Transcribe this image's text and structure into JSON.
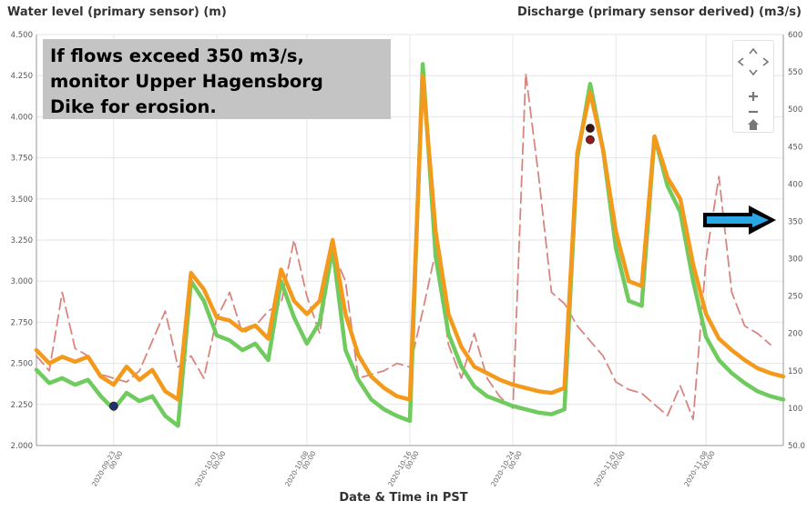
{
  "chart_data": {
    "type": "line",
    "title": "",
    "y_left": {
      "label": "Water level (primary sensor) (m)",
      "ylim": [
        2.0,
        4.5
      ],
      "ticks": [
        "2.000",
        "2.250",
        "2.500",
        "2.750",
        "3.000",
        "3.250",
        "3.500",
        "3.750",
        "4.000",
        "4.250",
        "4.500"
      ],
      "tick_values": [
        2.0,
        2.25,
        2.5,
        2.75,
        3.0,
        3.25,
        3.5,
        3.75,
        4.0,
        4.25,
        4.5
      ]
    },
    "y_right": {
      "label": "Discharge (primary sensor derived) (m3/s)",
      "ylim": [
        50,
        600
      ],
      "ticks": [
        "50.0",
        "100",
        "150",
        "200",
        "250",
        "300",
        "350",
        "400",
        "450",
        "500",
        "550",
        "600"
      ],
      "tick_values": [
        50,
        100,
        150,
        200,
        250,
        300,
        350,
        400,
        450,
        500,
        550,
        600
      ]
    },
    "x_axis": {
      "label": "Date & Time in PST",
      "range": [
        "2020-09-17",
        "2020-11-14"
      ],
      "ticks": [
        {
          "date": "2020-09-23",
          "label": "2020-09-23",
          "sublabel": "00:00"
        },
        {
          "date": "2020-10-01",
          "label": "2020-10-01",
          "sublabel": "00:00"
        },
        {
          "date": "2020-10-08",
          "label": "2020-10-08",
          "sublabel": "00:00"
        },
        {
          "date": "2020-10-16",
          "label": "2020-10-16",
          "sublabel": "00:00"
        },
        {
          "date": "2020-10-24",
          "label": "2020-10-24",
          "sublabel": "00:00"
        },
        {
          "date": "2020-11-01",
          "label": "2020-11-01",
          "sublabel": "00:00"
        },
        {
          "date": "2020-11-08",
          "label": "2020-11-08",
          "sublabel": "00:00"
        }
      ]
    },
    "grid": true,
    "legend": "none",
    "series": [
      {
        "axis": "left",
        "color": "#f39a1c",
        "style": "solid-thick",
        "points": [
          [
            "2020-09-17",
            2.58
          ],
          [
            "2020-09-18",
            2.5
          ],
          [
            "2020-09-19",
            2.54
          ],
          [
            "2020-09-20",
            2.51
          ],
          [
            "2020-09-21",
            2.54
          ],
          [
            "2020-09-22",
            2.42
          ],
          [
            "2020-09-23",
            2.37
          ],
          [
            "2020-09-24",
            2.48
          ],
          [
            "2020-09-25",
            2.4
          ],
          [
            "2020-09-26",
            2.46
          ],
          [
            "2020-09-27",
            2.33
          ],
          [
            "2020-09-28",
            2.28
          ],
          [
            "2020-09-29",
            3.05
          ],
          [
            "2020-09-30",
            2.95
          ],
          [
            "2020-10-01",
            2.78
          ],
          [
            "2020-10-02",
            2.76
          ],
          [
            "2020-10-03",
            2.7
          ],
          [
            "2020-10-04",
            2.73
          ],
          [
            "2020-10-05",
            2.65
          ],
          [
            "2020-10-06",
            3.07
          ],
          [
            "2020-10-07",
            2.88
          ],
          [
            "2020-10-08",
            2.8
          ],
          [
            "2020-10-09",
            2.88
          ],
          [
            "2020-10-10",
            3.25
          ],
          [
            "2020-10-11",
            2.8
          ],
          [
            "2020-10-12",
            2.55
          ],
          [
            "2020-10-13",
            2.42
          ],
          [
            "2020-10-14",
            2.35
          ],
          [
            "2020-10-15",
            2.3
          ],
          [
            "2020-10-16",
            2.28
          ],
          [
            "2020-10-17",
            4.25
          ],
          [
            "2020-10-18",
            3.3
          ],
          [
            "2020-10-19",
            2.8
          ],
          [
            "2020-10-20",
            2.6
          ],
          [
            "2020-10-21",
            2.48
          ],
          [
            "2020-10-22",
            2.44
          ],
          [
            "2020-10-23",
            2.4
          ],
          [
            "2020-10-24",
            2.37
          ],
          [
            "2020-10-25",
            2.35
          ],
          [
            "2020-10-26",
            2.33
          ],
          [
            "2020-10-27",
            2.32
          ],
          [
            "2020-10-28",
            2.35
          ],
          [
            "2020-10-29",
            3.78
          ],
          [
            "2020-10-30",
            4.15
          ],
          [
            "2020-10-31",
            3.8
          ],
          [
            "2020-11-01",
            3.3
          ],
          [
            "2020-11-02",
            3.0
          ],
          [
            "2020-11-03",
            2.97
          ],
          [
            "2020-11-04",
            3.88
          ],
          [
            "2020-11-05",
            3.63
          ],
          [
            "2020-11-06",
            3.5
          ],
          [
            "2020-11-07",
            3.1
          ],
          [
            "2020-11-08",
            2.8
          ],
          [
            "2020-11-09",
            2.65
          ],
          [
            "2020-11-10",
            2.58
          ],
          [
            "2020-11-11",
            2.52
          ],
          [
            "2020-11-12",
            2.47
          ],
          [
            "2020-11-13",
            2.44
          ],
          [
            "2020-11-14",
            2.42
          ]
        ]
      },
      {
        "axis": "left",
        "color": "#6fcb5e",
        "style": "solid-thick",
        "points": [
          [
            "2020-09-17",
            2.46
          ],
          [
            "2020-09-18",
            2.38
          ],
          [
            "2020-09-19",
            2.41
          ],
          [
            "2020-09-20",
            2.37
          ],
          [
            "2020-09-21",
            2.4
          ],
          [
            "2020-09-22",
            2.3
          ],
          [
            "2020-09-23",
            2.22
          ],
          [
            "2020-09-24",
            2.32
          ],
          [
            "2020-09-25",
            2.27
          ],
          [
            "2020-09-26",
            2.3
          ],
          [
            "2020-09-27",
            2.18
          ],
          [
            "2020-09-28",
            2.12
          ],
          [
            "2020-09-29",
            3.0
          ],
          [
            "2020-09-30",
            2.88
          ],
          [
            "2020-10-01",
            2.67
          ],
          [
            "2020-10-02",
            2.64
          ],
          [
            "2020-10-03",
            2.58
          ],
          [
            "2020-10-04",
            2.62
          ],
          [
            "2020-10-05",
            2.52
          ],
          [
            "2020-10-06",
            3.0
          ],
          [
            "2020-10-07",
            2.78
          ],
          [
            "2020-10-08",
            2.62
          ],
          [
            "2020-10-09",
            2.75
          ],
          [
            "2020-10-10",
            3.2
          ],
          [
            "2020-10-11",
            2.58
          ],
          [
            "2020-10-12",
            2.4
          ],
          [
            "2020-10-13",
            2.28
          ],
          [
            "2020-10-14",
            2.22
          ],
          [
            "2020-10-15",
            2.18
          ],
          [
            "2020-10-16",
            2.15
          ],
          [
            "2020-10-17",
            4.32
          ],
          [
            "2020-10-18",
            3.15
          ],
          [
            "2020-10-19",
            2.68
          ],
          [
            "2020-10-20",
            2.48
          ],
          [
            "2020-10-21",
            2.36
          ],
          [
            "2020-10-22",
            2.3
          ],
          [
            "2020-10-23",
            2.27
          ],
          [
            "2020-10-24",
            2.24
          ],
          [
            "2020-10-25",
            2.22
          ],
          [
            "2020-10-26",
            2.2
          ],
          [
            "2020-10-27",
            2.19
          ],
          [
            "2020-10-28",
            2.22
          ],
          [
            "2020-10-29",
            3.75
          ],
          [
            "2020-10-30",
            4.2
          ],
          [
            "2020-10-31",
            3.8
          ],
          [
            "2020-11-01",
            3.2
          ],
          [
            "2020-11-02",
            2.88
          ],
          [
            "2020-11-03",
            2.85
          ],
          [
            "2020-11-04",
            3.88
          ],
          [
            "2020-11-05",
            3.58
          ],
          [
            "2020-11-06",
            3.42
          ],
          [
            "2020-11-07",
            3.0
          ],
          [
            "2020-11-08",
            2.66
          ],
          [
            "2020-11-09",
            2.52
          ],
          [
            "2020-11-10",
            2.44
          ],
          [
            "2020-11-11",
            2.38
          ],
          [
            "2020-11-12",
            2.33
          ],
          [
            "2020-11-13",
            2.3
          ],
          [
            "2020-11-14",
            2.28
          ]
        ]
      },
      {
        "axis": "right",
        "color": "#d9857f",
        "style": "dashed",
        "points": [
          [
            "2020-09-17",
            170
          ],
          [
            "2020-09-18",
            150
          ],
          [
            "2020-09-19",
            255
          ],
          [
            "2020-09-20",
            180
          ],
          [
            "2020-09-21",
            170
          ],
          [
            "2020-09-22",
            145
          ],
          [
            "2020-09-24",
            135
          ],
          [
            "2020-09-25",
            150
          ],
          [
            "2020-09-27",
            230
          ],
          [
            "2020-09-28",
            155
          ],
          [
            "2020-09-29",
            170
          ],
          [
            "2020-09-30",
            140
          ],
          [
            "2020-10-01",
            220
          ],
          [
            "2020-10-02",
            255
          ],
          [
            "2020-10-03",
            200
          ],
          [
            "2020-10-04",
            210
          ],
          [
            "2020-10-05",
            230
          ],
          [
            "2020-10-06",
            240
          ],
          [
            "2020-10-07",
            325
          ],
          [
            "2020-10-08",
            250
          ],
          [
            "2020-10-09",
            200
          ],
          [
            "2020-10-10",
            310
          ],
          [
            "2020-10-11",
            270
          ],
          [
            "2020-10-12",
            140
          ],
          [
            "2020-10-14",
            150
          ],
          [
            "2020-10-15",
            160
          ],
          [
            "2020-10-16",
            155
          ],
          [
            "2020-10-17",
            230
          ],
          [
            "2020-10-18",
            310
          ],
          [
            "2020-10-19",
            185
          ],
          [
            "2020-10-20",
            140
          ],
          [
            "2020-10-21",
            200
          ],
          [
            "2020-10-22",
            140
          ],
          [
            "2020-10-23",
            115
          ],
          [
            "2020-10-24",
            100
          ],
          [
            "2020-10-25",
            548
          ],
          [
            "2020-10-26",
            410
          ],
          [
            "2020-10-27",
            255
          ],
          [
            "2020-10-28",
            240
          ],
          [
            "2020-10-29",
            210
          ],
          [
            "2020-10-30",
            190
          ],
          [
            "2020-10-31",
            170
          ],
          [
            "2020-11-01",
            135
          ],
          [
            "2020-11-02",
            125
          ],
          [
            "2020-11-03",
            120
          ],
          [
            "2020-11-04",
            105
          ],
          [
            "2020-11-05",
            90
          ],
          [
            "2020-11-06",
            130
          ],
          [
            "2020-11-07",
            85
          ],
          [
            "2020-11-08",
            300
          ],
          [
            "2020-11-09",
            410
          ],
          [
            "2020-11-10",
            255
          ],
          [
            "2020-11-11",
            210
          ],
          [
            "2020-11-12",
            200
          ],
          [
            "2020-11-13",
            185
          ]
        ]
      }
    ],
    "markers": [
      {
        "x": "2020-09-23",
        "y": 2.24,
        "axis": "left",
        "color": "#1f2f7a"
      },
      {
        "x": "2020-10-30",
        "y": 3.93,
        "axis": "left",
        "color": "#3a1010"
      },
      {
        "x": "2020-10-30",
        "y": 3.86,
        "axis": "left",
        "color": "#8e1b1b"
      }
    ],
    "annotations": [
      {
        "type": "text-box",
        "text": "If flows exceed 350 m3/s,\nmonitor Upper Hagensborg\nDike for erosion."
      },
      {
        "type": "arrow",
        "points_to_value": 350,
        "axis": "right",
        "fill": "#2aa7e6",
        "outline": "#000000"
      }
    ]
  },
  "nav": {
    "icons": [
      "chevron-up-icon",
      "chevron-left-icon",
      "chevron-right-icon",
      "chevron-down-icon",
      "zoom-in-icon",
      "zoom-out-icon",
      "home-icon"
    ]
  }
}
